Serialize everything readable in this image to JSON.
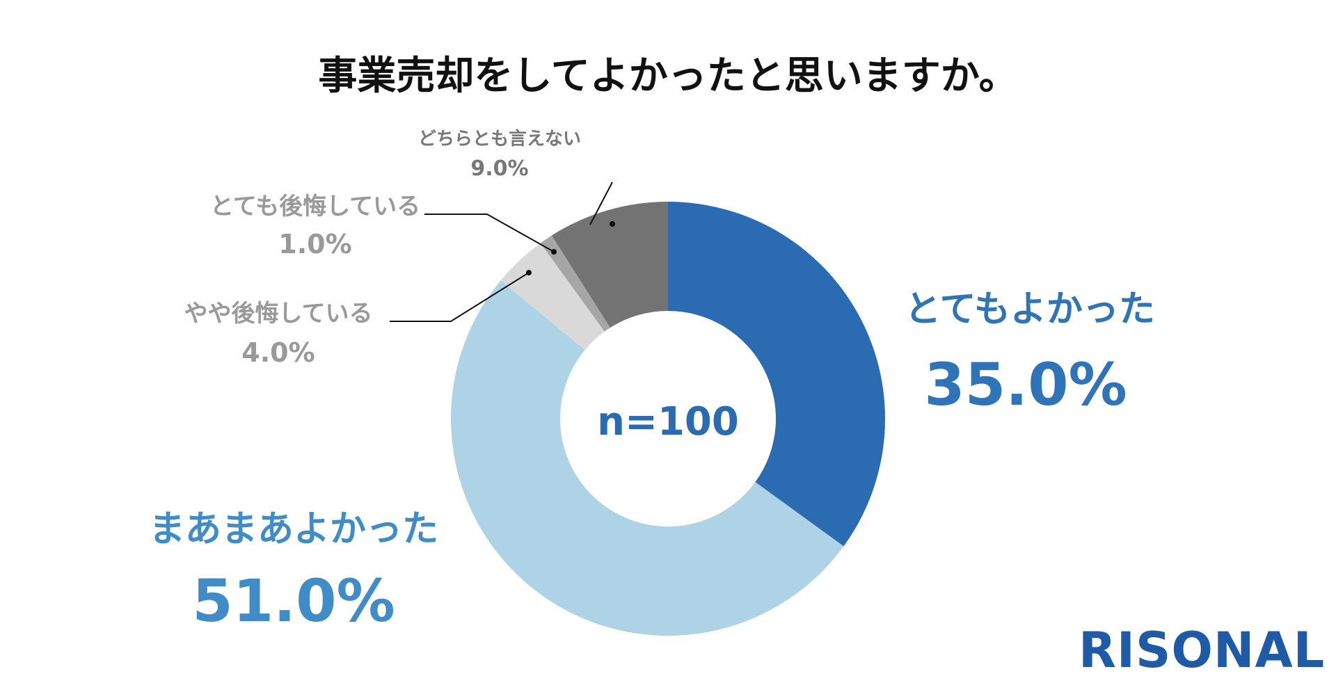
{
  "brand": {
    "logo_text": "RISONAL",
    "logo_color": "#1f5aa6"
  },
  "chart_data": {
    "type": "pie",
    "style": "donut",
    "title": "事業売却をしてよかったと思いますか。",
    "center_label": "n=100",
    "unit": "%",
    "slices": [
      {
        "label": "とてもよかった",
        "value": 35.0,
        "value_label": "35.0%",
        "color": "#2b6bb1",
        "text_color": "#2f73b8"
      },
      {
        "label": "まあまあよかった",
        "value": 51.0,
        "value_label": "51.0%",
        "color": "#aed2e6",
        "text_color": "#3f8cc9"
      },
      {
        "label": "やや後悔している",
        "value": 4.0,
        "value_label": "4.0%",
        "color": "#d9d9d9",
        "text_color": "#999999"
      },
      {
        "label": "とても後悔している",
        "value": 1.0,
        "value_label": "1.0%",
        "color": "#a6a6a6",
        "text_color": "#999999"
      },
      {
        "label": "どちらとも言えない",
        "value": 9.0,
        "value_label": "9.0%",
        "color": "#737373",
        "text_color": "#777777"
      }
    ],
    "start_angle_deg": 0,
    "direction": "clockwise"
  }
}
